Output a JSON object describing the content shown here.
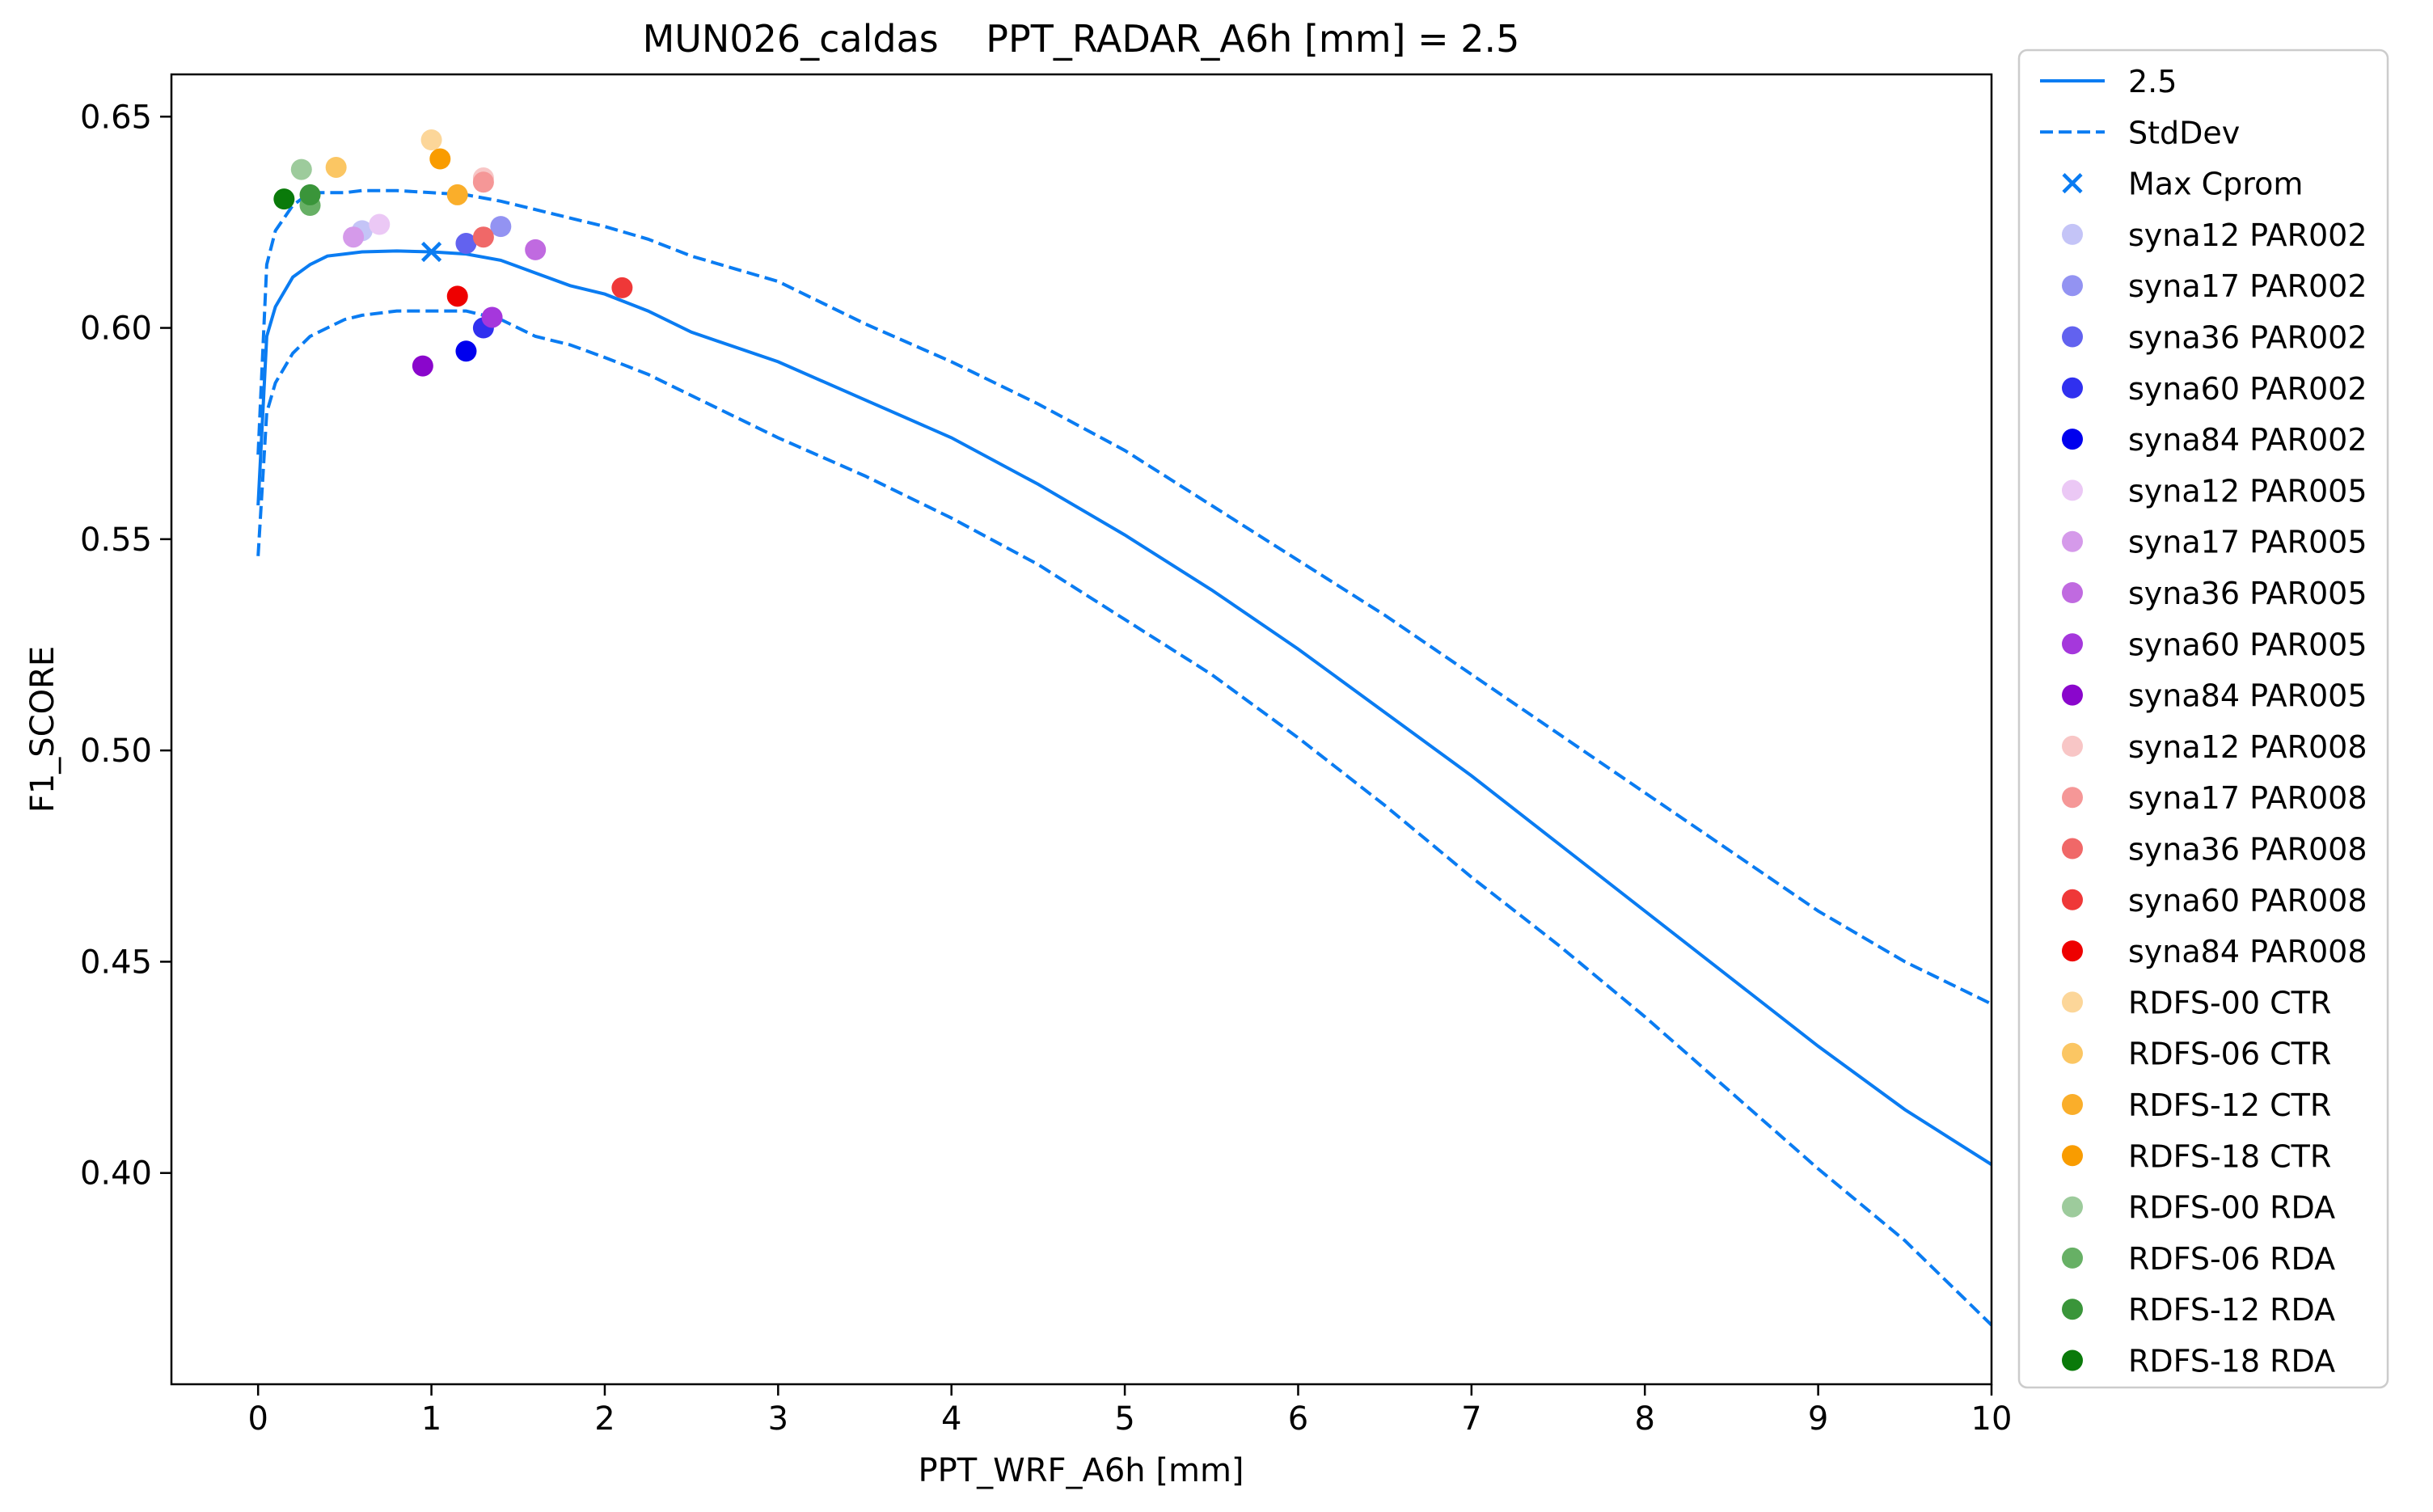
{
  "chart_data": {
    "type": "line",
    "title": "MUN026_caldas    PPT_RADAR_A6h [mm] = 2.5",
    "xlabel": "PPT_WRF_A6h [mm]",
    "ylabel": "F1_SCORE",
    "xlim": [
      -0.5,
      10
    ],
    "ylim": [
      0.35,
      0.66
    ],
    "xticks": [
      0,
      1,
      2,
      3,
      4,
      5,
      6,
      7,
      8,
      9,
      10
    ],
    "yticks": [
      0.4,
      0.45,
      0.5,
      0.55,
      0.6,
      0.65
    ],
    "ytick_labels": [
      "0.40",
      "0.45",
      "0.50",
      "0.55",
      "0.60",
      "0.65"
    ],
    "grid": false,
    "legend_position": "outside-right",
    "series": [
      {
        "name": "2.5",
        "style": "solid",
        "color": "#0a7cf2",
        "x": [
          0,
          0.05,
          0.1,
          0.2,
          0.3,
          0.4,
          0.5,
          0.6,
          0.8,
          1.0,
          1.2,
          1.4,
          1.6,
          1.8,
          2.0,
          2.25,
          2.5,
          3.0,
          3.5,
          4.0,
          4.5,
          5.0,
          5.5,
          6.0,
          6.5,
          7.0,
          7.5,
          8.0,
          8.5,
          9.0,
          9.5,
          10.0
        ],
        "y": [
          0.558,
          0.598,
          0.605,
          0.612,
          0.615,
          0.617,
          0.6175,
          0.618,
          0.6182,
          0.618,
          0.6175,
          0.616,
          0.613,
          0.61,
          0.608,
          0.604,
          0.599,
          0.592,
          0.583,
          0.574,
          0.563,
          0.551,
          0.538,
          0.524,
          0.509,
          0.494,
          0.478,
          0.462,
          0.446,
          0.43,
          0.415,
          0.402
        ]
      },
      {
        "name": "StdDev",
        "style": "dashed",
        "color": "#0a7cf2",
        "x": [
          0,
          0.05,
          0.1,
          0.2,
          0.3,
          0.4,
          0.5,
          0.6,
          0.8,
          1.0,
          1.2,
          1.4,
          1.6,
          1.8,
          2.0,
          2.25,
          2.5,
          3.0,
          3.5,
          4.0,
          4.5,
          5.0,
          5.5,
          6.0,
          6.5,
          7.0,
          7.5,
          8.0,
          8.5,
          9.0,
          9.5,
          10.0
        ],
        "y": [
          0.57,
          0.615,
          0.623,
          0.629,
          0.632,
          0.632,
          0.632,
          0.6325,
          0.6325,
          0.632,
          0.6315,
          0.63,
          0.628,
          0.626,
          0.624,
          0.621,
          0.617,
          0.611,
          0.601,
          0.592,
          0.582,
          0.571,
          0.558,
          0.545,
          0.532,
          0.518,
          0.504,
          0.49,
          0.476,
          0.462,
          0.45,
          0.44
        ]
      },
      {
        "name": "",
        "style": "dashed",
        "color": "#0a7cf2",
        "x": [
          0,
          0.05,
          0.1,
          0.2,
          0.3,
          0.4,
          0.5,
          0.6,
          0.8,
          1.0,
          1.2,
          1.4,
          1.6,
          1.8,
          2.0,
          2.25,
          2.5,
          3.0,
          3.5,
          4.0,
          4.5,
          5.0,
          5.5,
          6.0,
          6.5,
          7.0,
          7.5,
          8.0,
          8.5,
          9.0,
          9.5,
          10.0
        ],
        "y": [
          0.546,
          0.58,
          0.587,
          0.594,
          0.598,
          0.6,
          0.602,
          0.603,
          0.604,
          0.604,
          0.604,
          0.602,
          0.598,
          0.596,
          0.593,
          0.589,
          0.584,
          0.574,
          0.565,
          0.555,
          0.544,
          0.531,
          0.518,
          0.503,
          0.487,
          0.47,
          0.454,
          0.437,
          0.419,
          0.401,
          0.384,
          0.364
        ]
      }
    ],
    "max_point": {
      "name": "Max Cprom",
      "x": 1.0,
      "y": 0.618,
      "color": "#0a7cf2"
    },
    "legend": [
      {
        "label": "2.5",
        "kind": "line",
        "color": "#0a7cf2"
      },
      {
        "label": "StdDev",
        "kind": "dash",
        "color": "#0a7cf2"
      },
      {
        "label": "Max Cprom",
        "kind": "cross",
        "color": "#0a7cf2"
      },
      {
        "label": "syna12 PAR002",
        "kind": "dot",
        "color": "#c4c4f7"
      },
      {
        "label": "syna17 PAR002",
        "kind": "dot",
        "color": "#9393f2"
      },
      {
        "label": "syna36 PAR002",
        "kind": "dot",
        "color": "#6262ef"
      },
      {
        "label": "syna60 PAR002",
        "kind": "dot",
        "color": "#3030ef"
      },
      {
        "label": "syna84 PAR002",
        "kind": "dot",
        "color": "#0000ee"
      },
      {
        "label": "syna12 PAR005",
        "kind": "dot",
        "color": "#ebc8f5"
      },
      {
        "label": "syna17 PAR005",
        "kind": "dot",
        "color": "#d59aea"
      },
      {
        "label": "syna36 PAR005",
        "kind": "dot",
        "color": "#c06ae0"
      },
      {
        "label": "syna60 PAR005",
        "kind": "dot",
        "color": "#a537dc"
      },
      {
        "label": "syna84 PAR005",
        "kind": "dot",
        "color": "#8a06cc"
      },
      {
        "label": "syna12 PAR008",
        "kind": "dot",
        "color": "#f8c6c6"
      },
      {
        "label": "syna17 PAR008",
        "kind": "dot",
        "color": "#f59797"
      },
      {
        "label": "syna36 PAR008",
        "kind": "dot",
        "color": "#f06868"
      },
      {
        "label": "syna60 PAR008",
        "kind": "dot",
        "color": "#ef3838"
      },
      {
        "label": "syna84 PAR008",
        "kind": "dot",
        "color": "#ee0000"
      },
      {
        "label": "RDFS-00 CTR",
        "kind": "dot",
        "color": "#fcd699"
      },
      {
        "label": "RDFS-06 CTR",
        "kind": "dot",
        "color": "#fbc663"
      },
      {
        "label": "RDFS-12 CTR",
        "kind": "dot",
        "color": "#faae2a"
      },
      {
        "label": "RDFS-18 CTR",
        "kind": "dot",
        "color": "#f99c00"
      },
      {
        "label": "RDFS-00 RDA",
        "kind": "dot",
        "color": "#9dcb9c"
      },
      {
        "label": "RDFS-06 RDA",
        "kind": "dot",
        "color": "#67b065"
      },
      {
        "label": "RDFS-12 RDA",
        "kind": "dot",
        "color": "#3a953a"
      },
      {
        "label": "RDFS-18 RDA",
        "kind": "dot",
        "color": "#0a7a0a"
      }
    ],
    "points": [
      {
        "name": "syna12 PAR002",
        "x": 0.6,
        "y": 0.623,
        "color": "#c4c4f7"
      },
      {
        "name": "syna17 PAR002",
        "x": 1.4,
        "y": 0.624,
        "color": "#9393f2"
      },
      {
        "name": "syna36 PAR002",
        "x": 1.2,
        "y": 0.62,
        "color": "#6262ef"
      },
      {
        "name": "syna60 PAR002",
        "x": 1.3,
        "y": 0.6,
        "color": "#3030ef"
      },
      {
        "name": "syna84 PAR002",
        "x": 1.2,
        "y": 0.5945,
        "color": "#0000ee"
      },
      {
        "name": "syna12 PAR005",
        "x": 0.7,
        "y": 0.6245,
        "color": "#ebc8f5"
      },
      {
        "name": "syna17 PAR005",
        "x": 0.55,
        "y": 0.6215,
        "color": "#d59aea"
      },
      {
        "name": "syna36 PAR005",
        "x": 1.6,
        "y": 0.6185,
        "color": "#c06ae0"
      },
      {
        "name": "syna60 PAR005",
        "x": 1.35,
        "y": 0.6025,
        "color": "#a537dc"
      },
      {
        "name": "syna84 PAR005",
        "x": 0.95,
        "y": 0.591,
        "color": "#8a06cc"
      },
      {
        "name": "syna12 PAR008",
        "x": 1.3,
        "y": 0.6355,
        "color": "#f8c6c6"
      },
      {
        "name": "syna17 PAR008",
        "x": 1.3,
        "y": 0.6345,
        "color": "#f59797"
      },
      {
        "name": "syna36 PAR008",
        "x": 1.3,
        "y": 0.6215,
        "color": "#f06868"
      },
      {
        "name": "syna60 PAR008",
        "x": 2.1,
        "y": 0.6095,
        "color": "#ef3838"
      },
      {
        "name": "syna84 PAR008",
        "x": 1.15,
        "y": 0.6075,
        "color": "#ee0000"
      },
      {
        "name": "RDFS-00 CTR",
        "x": 1.0,
        "y": 0.6445,
        "color": "#fcd699"
      },
      {
        "name": "RDFS-06 CTR",
        "x": 0.45,
        "y": 0.638,
        "color": "#fbc663"
      },
      {
        "name": "RDFS-12 CTR",
        "x": 1.15,
        "y": 0.6315,
        "color": "#faae2a"
      },
      {
        "name": "RDFS-18 CTR",
        "x": 1.05,
        "y": 0.64,
        "color": "#f99c00"
      },
      {
        "name": "RDFS-00 RDA",
        "x": 0.25,
        "y": 0.6375,
        "color": "#9dcb9c"
      },
      {
        "name": "RDFS-06 RDA",
        "x": 0.3,
        "y": 0.629,
        "color": "#67b065"
      },
      {
        "name": "RDFS-12 RDA",
        "x": 0.3,
        "y": 0.6315,
        "color": "#3a953a"
      },
      {
        "name": "RDFS-18 RDA",
        "x": 0.15,
        "y": 0.6305,
        "color": "#0a7a0a"
      }
    ]
  }
}
